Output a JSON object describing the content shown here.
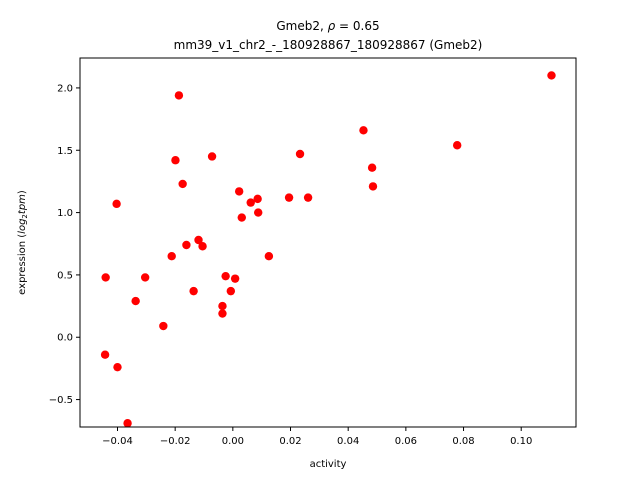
{
  "chart_data": {
    "type": "scatter",
    "title_line1_name": "Gmeb2, ",
    "title_line1_rho": "ρ",
    "title_line1_value": " = 0.65",
    "title_line2": "mm39_v1_chr2_-_180928867_180928867 (Gmeb2)",
    "xlabel": "activity",
    "ylabel_prefix": "expression (",
    "ylabel_log": "log",
    "ylabel_base": "2",
    "ylabel_tpm": "tpm",
    "ylabel_suffix": ")",
    "xlim": [
      -0.053,
      0.119
    ],
    "ylim": [
      -0.72,
      2.24
    ],
    "xticks": [
      {
        "value": -0.04,
        "label": "−0.04"
      },
      {
        "value": -0.02,
        "label": "−0.02"
      },
      {
        "value": 0.0,
        "label": "0.00"
      },
      {
        "value": 0.02,
        "label": "0.02"
      },
      {
        "value": 0.04,
        "label": "0.04"
      },
      {
        "value": 0.06,
        "label": "0.06"
      },
      {
        "value": 0.08,
        "label": "0.08"
      },
      {
        "value": 0.1,
        "label": "0.10"
      }
    ],
    "yticks": [
      {
        "value": -0.5,
        "label": "−0.5"
      },
      {
        "value": 0.0,
        "label": "0.0"
      },
      {
        "value": 0.5,
        "label": "0.5"
      },
      {
        "value": 1.0,
        "label": "1.0"
      },
      {
        "value": 1.5,
        "label": "1.5"
      },
      {
        "value": 2.0,
        "label": "2.0"
      }
    ],
    "grid": false,
    "point_color": "#ff0000",
    "points": [
      {
        "x": 0.1105,
        "y": 2.1
      },
      {
        "x": 0.0778,
        "y": 1.54
      },
      {
        "x": 0.0453,
        "y": 1.66
      },
      {
        "x": 0.0483,
        "y": 1.36
      },
      {
        "x": 0.0486,
        "y": 1.21
      },
      {
        "x": 0.0233,
        "y": 1.47
      },
      {
        "x": 0.0195,
        "y": 1.12
      },
      {
        "x": 0.0261,
        "y": 1.12
      },
      {
        "x": 0.0086,
        "y": 1.11
      },
      {
        "x": 0.0088,
        "y": 1.0
      },
      {
        "x": 0.0062,
        "y": 1.08
      },
      {
        "x": 0.0022,
        "y": 1.17
      },
      {
        "x": 0.0031,
        "y": 0.96
      },
      {
        "x": 0.0125,
        "y": 0.65
      },
      {
        "x": -0.0187,
        "y": 1.94
      },
      {
        "x": -0.0199,
        "y": 1.42
      },
      {
        "x": -0.0072,
        "y": 1.45
      },
      {
        "x": -0.0174,
        "y": 1.23
      },
      {
        "x": -0.0403,
        "y": 1.07
      },
      {
        "x": -0.0161,
        "y": 0.74
      },
      {
        "x": -0.0119,
        "y": 0.78
      },
      {
        "x": -0.0105,
        "y": 0.73
      },
      {
        "x": -0.0212,
        "y": 0.65
      },
      {
        "x": -0.0025,
        "y": 0.49
      },
      {
        "x": 0.0008,
        "y": 0.47
      },
      {
        "x": -0.0007,
        "y": 0.37
      },
      {
        "x": -0.0136,
        "y": 0.37
      },
      {
        "x": -0.0036,
        "y": 0.25
      },
      {
        "x": -0.0036,
        "y": 0.19
      },
      {
        "x": -0.0441,
        "y": 0.48
      },
      {
        "x": -0.0304,
        "y": 0.48
      },
      {
        "x": -0.0337,
        "y": 0.29
      },
      {
        "x": -0.0241,
        "y": 0.09
      },
      {
        "x": -0.0443,
        "y": -0.14
      },
      {
        "x": -0.04,
        "y": -0.24
      },
      {
        "x": -0.0365,
        "y": -0.69
      }
    ]
  }
}
